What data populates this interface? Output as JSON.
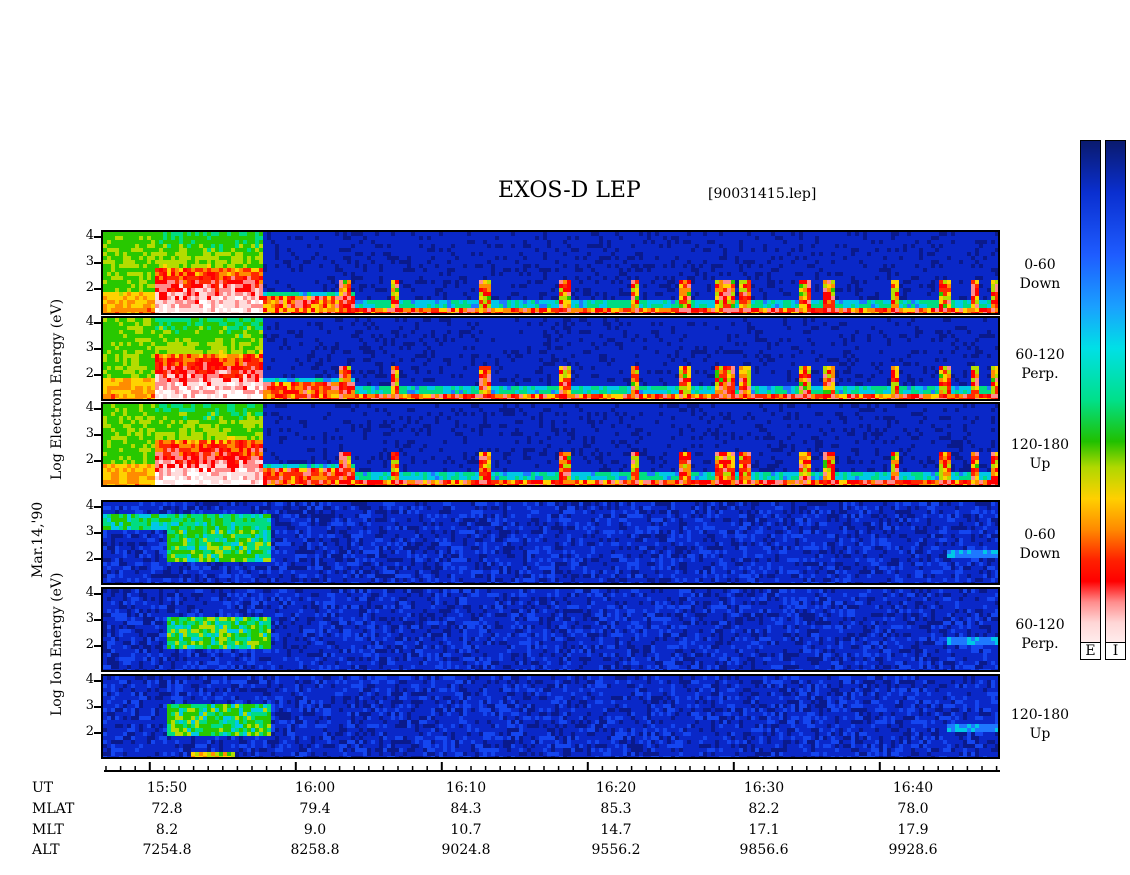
{
  "header": {
    "title": "EXOS-D LEP",
    "file": "[90031415.lep]"
  },
  "electron_panels": [
    {
      "label_top": "0-60",
      "label_bottom": "Down"
    },
    {
      "label_top": "60-120",
      "label_bottom": "Perp."
    },
    {
      "label_top": "120-180",
      "label_bottom": "Up"
    }
  ],
  "ion_panels": [
    {
      "label_top": "0-60",
      "label_bottom": "Down"
    },
    {
      "label_top": "60-120",
      "label_bottom": "Perp."
    },
    {
      "label_top": "120-180",
      "label_bottom": "Up"
    }
  ],
  "ylabels": {
    "electron": "Log   Electron   Energy (eV)",
    "ion": "Log   Ion   Energy (eV)",
    "date": "Mar.14,'90"
  },
  "yticks": [
    "4",
    "3",
    "2"
  ],
  "colorbar": {
    "electron_label": "E",
    "ion_label": "I"
  },
  "orbit_table": {
    "rows": [
      {
        "name": "UT",
        "values": [
          "15:50",
          "16:00",
          "16:10",
          "16:20",
          "16:30",
          "16:40"
        ]
      },
      {
        "name": "MLAT",
        "values": [
          "72.8",
          "79.4",
          "84.3",
          "85.3",
          "82.2",
          "78.0"
        ]
      },
      {
        "name": "MLT",
        "values": [
          "8.2",
          "9.0",
          "10.7",
          "14.7",
          "17.1",
          "17.9"
        ]
      },
      {
        "name": "ALT",
        "values": [
          "7254.8",
          "8258.8",
          "9024.8",
          "9556.2",
          "9856.6",
          "9928.6"
        ]
      }
    ]
  },
  "chart_data": {
    "type": "heatmap",
    "title": "EXOS-D LEP",
    "subtitle": "[90031415.lep]",
    "xlabel": "UT",
    "x_ticks": [
      "15:50",
      "16:00",
      "16:10",
      "16:20",
      "16:30",
      "16:40"
    ],
    "y_ticks": [
      2,
      3,
      4
    ],
    "ylim": [
      1,
      4.2
    ],
    "date": "Mar.14,'90",
    "species": [
      {
        "name": "Electron",
        "ylabel": "Log Electron Energy (eV)",
        "pitch_angles": [
          "0-60 Down",
          "60-120 Perp.",
          "120-180 Up"
        ]
      },
      {
        "name": "Ion",
        "ylabel": "Log Ion Energy (eV)",
        "pitch_angles": [
          "0-60 Down",
          "60-120 Perp.",
          "120-180 Up"
        ]
      }
    ],
    "colors": {
      "low": "#0a1a6e",
      "mid_low": "#1e5cff",
      "mid": "#00e08a",
      "mid_high": "#ffd000",
      "high": "#ff0000",
      "max": "#ffffff"
    },
    "colorbar_labels": [
      "E",
      "I"
    ]
  }
}
